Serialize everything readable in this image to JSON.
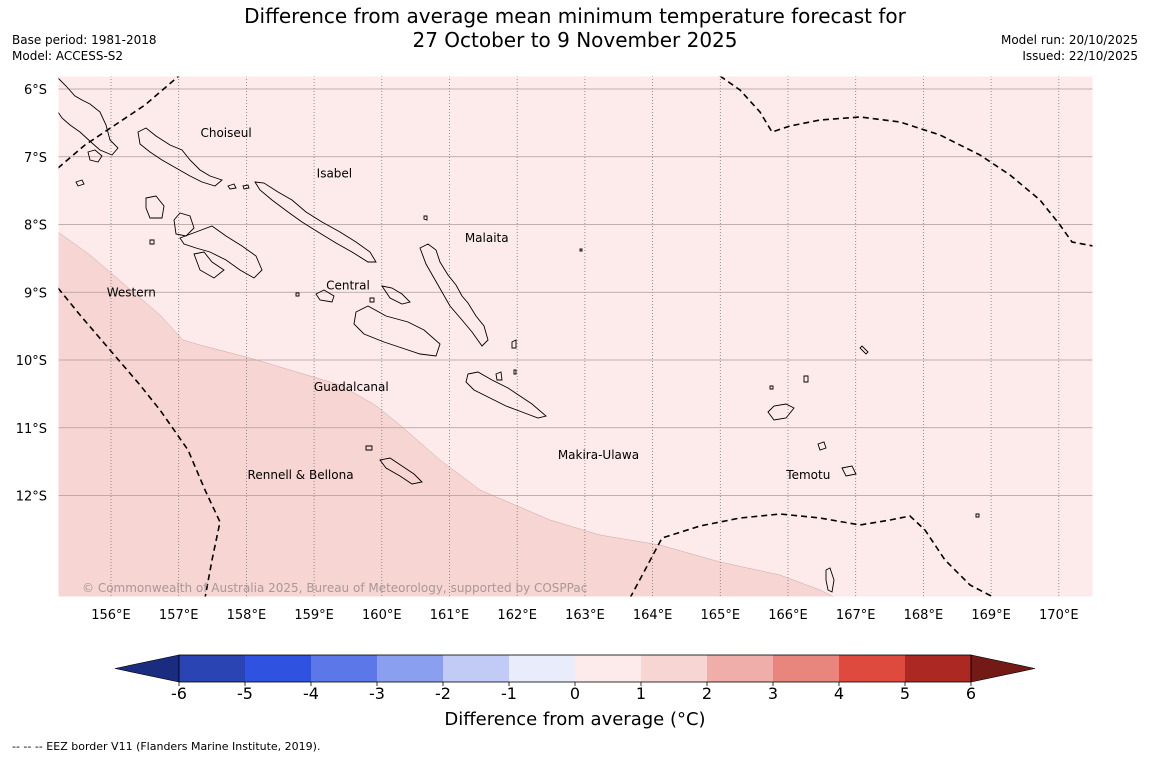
{
  "header": {
    "title_line1": "Difference from average mean minimum temperature forecast for",
    "title_line2": "27 October to 9 November 2025",
    "base_period": "Base period: 1981-2018",
    "model": "Model: ACCESS-S2",
    "model_run": "Model run: 20/10/2025",
    "issued": "Issued: 22/10/2025"
  },
  "map": {
    "lon_labels": [
      "156°E",
      "157°E",
      "158°E",
      "159°E",
      "160°E",
      "161°E",
      "162°E",
      "163°E",
      "164°E",
      "165°E",
      "166°E",
      "167°E",
      "168°E",
      "169°E",
      "170°E"
    ],
    "lat_labels": [
      "6°S",
      "7°S",
      "8°S",
      "9°S",
      "10°S",
      "11°S",
      "12°S"
    ],
    "regions": [
      {
        "name": "Choiseul",
        "lon": 157.7,
        "lat": -6.65
      },
      {
        "name": "Isabel",
        "lon": 159.3,
        "lat": -7.25
      },
      {
        "name": "Malaita",
        "lon": 161.55,
        "lat": -8.2
      },
      {
        "name": "Western",
        "lon": 156.3,
        "lat": -9.0
      },
      {
        "name": "Central",
        "lon": 159.5,
        "lat": -8.9
      },
      {
        "name": "Guadalcanal",
        "lon": 159.55,
        "lat": -10.4
      },
      {
        "name": "Makira-Ulawa",
        "lon": 163.2,
        "lat": -11.4
      },
      {
        "name": "Rennell & Bellona",
        "lon": 158.8,
        "lat": -11.7
      },
      {
        "name": "Temotu",
        "lon": 166.3,
        "lat": -11.7
      }
    ],
    "copyright": "© Commonwealth of Australia 2025, Bureau of Meteorology, supported by COSPPac",
    "fill_colors": {
      "band_1_2": "#fcebea",
      "band_2_3": "#f7d5d2"
    }
  },
  "colorbar": {
    "ticks": [
      "-6",
      "-5",
      "-4",
      "-3",
      "-2",
      "-1",
      "0",
      "1",
      "2",
      "3",
      "4",
      "5",
      "6"
    ],
    "colors": [
      "#1a2c80",
      "#2a44b4",
      "#3052e0",
      "#5c78e8",
      "#8a9ff0",
      "#c2cbf6",
      "#e8ecfb",
      "#fcebea",
      "#f7d5d2",
      "#efaeaa",
      "#e8867e",
      "#de4a3e",
      "#ac2822",
      "#741a16"
    ],
    "label": "Difference from average (°C)"
  },
  "footnote": "--  --  -- EEZ border V11 (Flanders Marine Institute, 2019)."
}
